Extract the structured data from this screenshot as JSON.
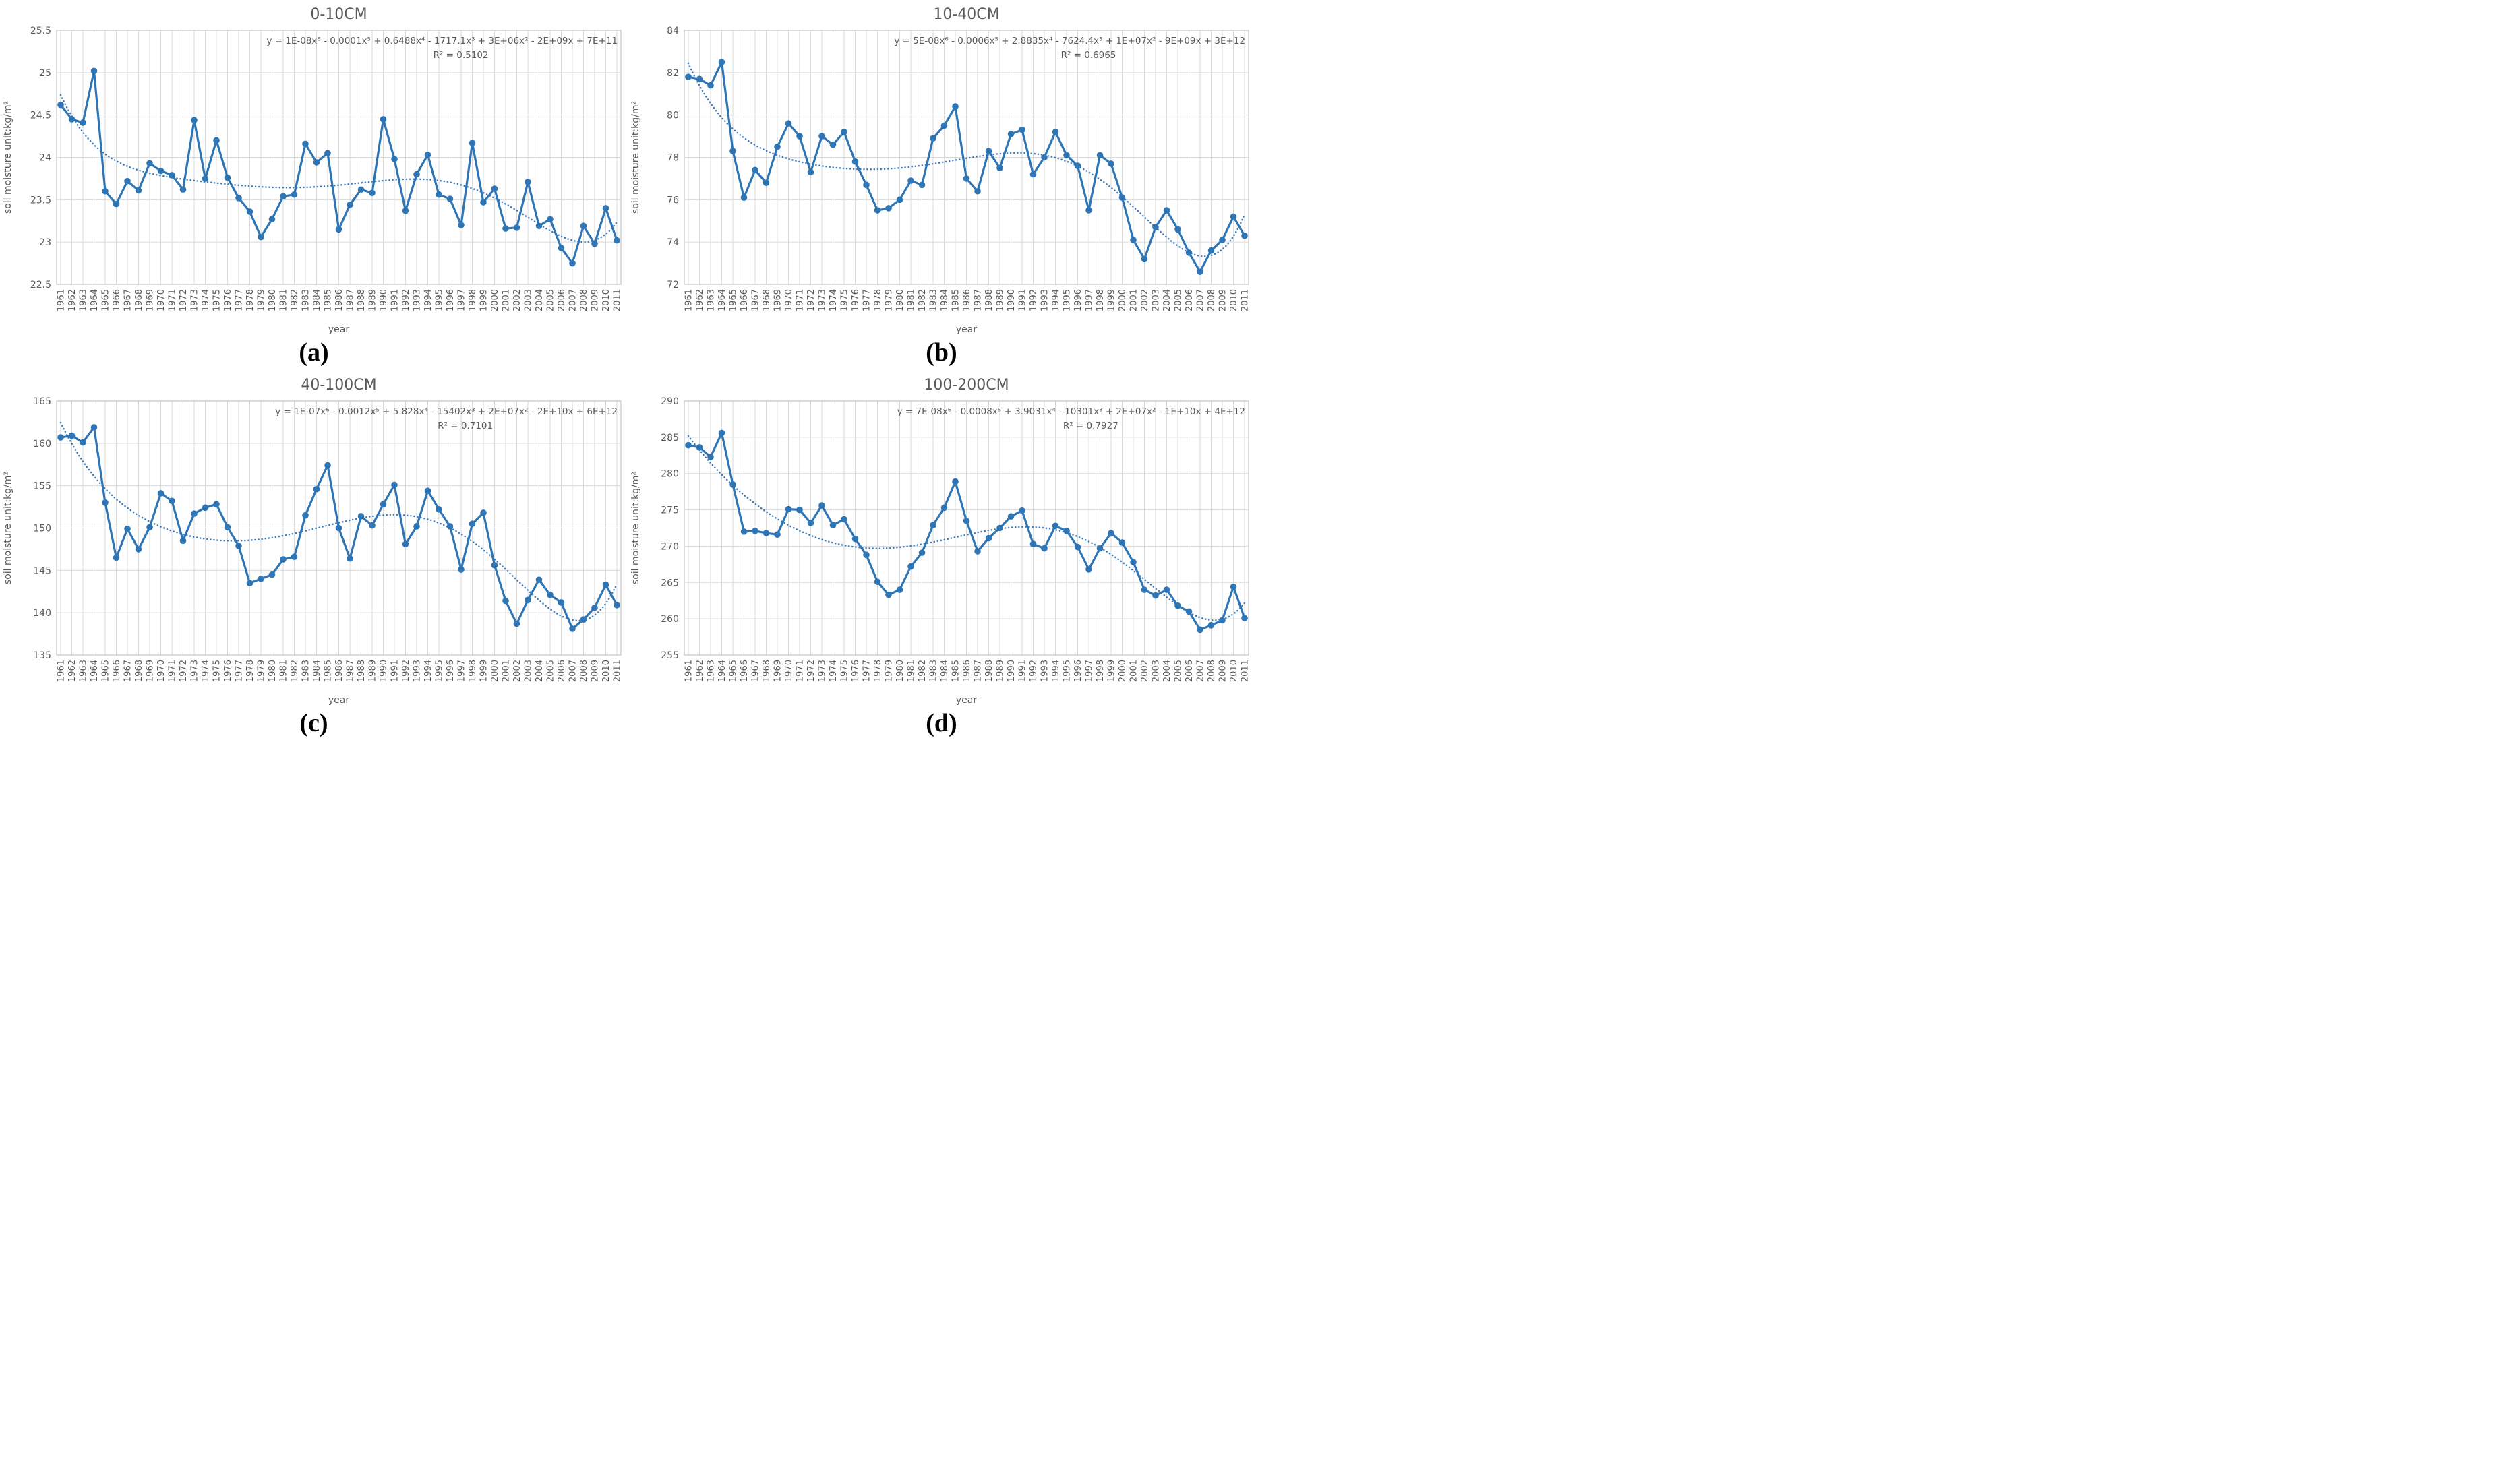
{
  "style": {
    "line_color": "#2E75B6",
    "marker_color": "#2E75B6",
    "trend_color": "#3A7BBF",
    "grid_color": "#D9D9D9",
    "border_color": "#C6C6C6",
    "axis_text_color": "#595959",
    "title_color": "#595959",
    "equation_color": "#595959",
    "background": "#FFFFFF"
  },
  "chart_data": [
    {
      "type": "line",
      "title": "0-10CM",
      "caption": "(a)",
      "equation": "y = 1E-08x⁶ - 0.0001x⁵ + 0.6488x⁴ - 1717.1x³ + 3E+06x² - 2E+09x + 7E+11",
      "r2": "R² = 0.5102",
      "xlabel": "year",
      "ylabel": "soil moisture  unit:kg/m²",
      "ymin": 22.5,
      "ymax": 25.5,
      "ystep": 0.5,
      "trendline": {
        "type": "polynomial",
        "degree": 6,
        "style": "dotted"
      },
      "years": [
        1961,
        1962,
        1963,
        1964,
        1965,
        1966,
        1967,
        1968,
        1969,
        1970,
        1971,
        1972,
        1973,
        1974,
        1975,
        1976,
        1977,
        1978,
        1979,
        1980,
        1981,
        1982,
        1983,
        1984,
        1985,
        1986,
        1987,
        1988,
        1989,
        1990,
        1991,
        1992,
        1993,
        1994,
        1995,
        1996,
        1997,
        1998,
        1999,
        2000,
        2001,
        2002,
        2003,
        2004,
        2005,
        2006,
        2007,
        2008,
        2009,
        2010,
        2011
      ],
      "values": [
        24.62,
        24.45,
        24.41,
        25.02,
        23.6,
        23.45,
        23.72,
        23.61,
        23.93,
        23.84,
        23.79,
        23.62,
        24.44,
        23.75,
        24.2,
        23.76,
        23.52,
        23.36,
        23.06,
        23.27,
        23.54,
        23.56,
        24.16,
        23.94,
        24.05,
        23.15,
        23.44,
        23.62,
        23.58,
        24.45,
        23.98,
        23.37,
        23.8,
        24.03,
        23.56,
        23.51,
        23.2,
        24.17,
        23.47,
        23.63,
        23.16,
        23.17,
        23.71,
        23.19,
        23.27,
        22.93,
        22.75,
        23.19,
        22.98,
        23.4,
        23.02
      ]
    },
    {
      "type": "line",
      "title": "10-40CM",
      "caption": "(b)",
      "equation": "y = 5E-08x⁶ - 0.0006x⁵ + 2.8835x⁴ - 7624.4x³ + 1E+07x² - 9E+09x + 3E+12",
      "r2": "R² = 0.6965",
      "xlabel": "year",
      "ylabel": "soil moisture  unit:kg/m²",
      "ymin": 72,
      "ymax": 84,
      "ystep": 2,
      "trendline": {
        "type": "polynomial",
        "degree": 6,
        "style": "dotted"
      },
      "years": [
        1961,
        1962,
        1963,
        1964,
        1965,
        1966,
        1967,
        1968,
        1969,
        1970,
        1971,
        1972,
        1973,
        1974,
        1975,
        1976,
        1977,
        1978,
        1979,
        1980,
        1981,
        1982,
        1983,
        1984,
        1985,
        1986,
        1987,
        1988,
        1989,
        1990,
        1991,
        1992,
        1993,
        1994,
        1995,
        1996,
        1997,
        1998,
        1999,
        2000,
        2001,
        2002,
        2003,
        2004,
        2005,
        2006,
        2007,
        2008,
        2009,
        2010,
        2011
      ],
      "values": [
        81.8,
        81.7,
        81.4,
        82.5,
        78.3,
        76.1,
        77.4,
        76.8,
        78.5,
        79.6,
        79.0,
        77.3,
        79.0,
        78.6,
        79.2,
        77.8,
        76.7,
        75.5,
        75.6,
        76.0,
        76.9,
        76.7,
        78.9,
        79.5,
        80.4,
        77.0,
        76.4,
        78.3,
        77.5,
        79.1,
        79.3,
        77.2,
        78.0,
        79.2,
        78.1,
        77.6,
        75.5,
        78.1,
        77.7,
        76.1,
        74.1,
        73.2,
        74.7,
        75.5,
        74.6,
        73.5,
        72.6,
        73.6,
        74.1,
        75.2,
        74.3
      ]
    },
    {
      "type": "line",
      "title": "40-100CM",
      "caption": "(c)",
      "equation": "y = 1E-07x⁶ - 0.0012x⁵ + 5.828x⁴ - 15402x³ + 2E+07x² - 2E+10x + 6E+12",
      "r2": "R² = 0.7101",
      "xlabel": "year",
      "ylabel": "soil moisture  unit:kg/m²",
      "ymin": 135,
      "ymax": 165,
      "ystep": 5,
      "trendline": {
        "type": "polynomial",
        "degree": 6,
        "style": "dotted"
      },
      "years": [
        1961,
        1962,
        1963,
        1964,
        1965,
        1966,
        1967,
        1968,
        1969,
        1970,
        1971,
        1972,
        1973,
        1974,
        1975,
        1976,
        1977,
        1978,
        1979,
        1980,
        1981,
        1982,
        1983,
        1984,
        1985,
        1986,
        1987,
        1988,
        1989,
        1990,
        1991,
        1992,
        1993,
        1994,
        1995,
        1996,
        1997,
        1998,
        1999,
        2000,
        2001,
        2002,
        2003,
        2004,
        2005,
        2006,
        2007,
        2008,
        2009,
        2010,
        2011
      ],
      "values": [
        160.7,
        160.9,
        160.1,
        161.9,
        153.0,
        146.5,
        149.9,
        147.5,
        150.1,
        154.1,
        153.2,
        148.5,
        151.7,
        152.4,
        152.8,
        150.1,
        147.9,
        143.5,
        144.0,
        144.5,
        146.3,
        146.6,
        151.5,
        154.6,
        157.4,
        150.0,
        146.4,
        151.4,
        150.3,
        152.8,
        155.1,
        148.1,
        150.2,
        154.4,
        152.2,
        150.2,
        145.1,
        150.5,
        151.8,
        145.6,
        141.4,
        138.7,
        141.5,
        143.9,
        142.1,
        141.2,
        138.1,
        139.2,
        140.6,
        143.3,
        140.9
      ]
    },
    {
      "type": "line",
      "title": "100-200CM",
      "caption": "(d)",
      "equation": "y = 7E-08x⁶ - 0.0008x⁵ + 3.9031x⁴ - 10301x³ + 2E+07x² - 1E+10x + 4E+12",
      "r2": "R² = 0.7927",
      "xlabel": "year",
      "ylabel": "soil moisture  unit:kg/m²",
      "ymin": 255,
      "ymax": 290,
      "ystep": 5,
      "trendline": {
        "type": "polynomial",
        "degree": 6,
        "style": "dotted"
      },
      "years": [
        1961,
        1962,
        1963,
        1964,
        1965,
        1966,
        1967,
        1968,
        1969,
        1970,
        1971,
        1972,
        1973,
        1974,
        1975,
        1976,
        1977,
        1978,
        1979,
        1980,
        1981,
        1982,
        1983,
        1984,
        1985,
        1986,
        1987,
        1988,
        1989,
        1990,
        1991,
        1992,
        1993,
        1994,
        1995,
        1996,
        1997,
        1998,
        1999,
        2000,
        2001,
        2002,
        2003,
        2004,
        2005,
        2006,
        2007,
        2008,
        2009,
        2010,
        2011
      ],
      "values": [
        283.9,
        283.6,
        282.3,
        285.6,
        278.5,
        272.0,
        272.1,
        271.8,
        271.6,
        275.1,
        275.0,
        273.2,
        275.6,
        272.9,
        273.7,
        271.0,
        268.8,
        265.1,
        263.3,
        264.0,
        267.2,
        269.1,
        272.9,
        275.3,
        278.9,
        273.5,
        269.3,
        271.1,
        272.5,
        274.1,
        274.9,
        270.3,
        269.7,
        272.8,
        272.1,
        269.9,
        266.8,
        269.7,
        271.8,
        270.5,
        267.8,
        264.0,
        263.2,
        264.0,
        261.8,
        261.0,
        258.5,
        259.1,
        259.8,
        264.4,
        260.1
      ]
    }
  ]
}
